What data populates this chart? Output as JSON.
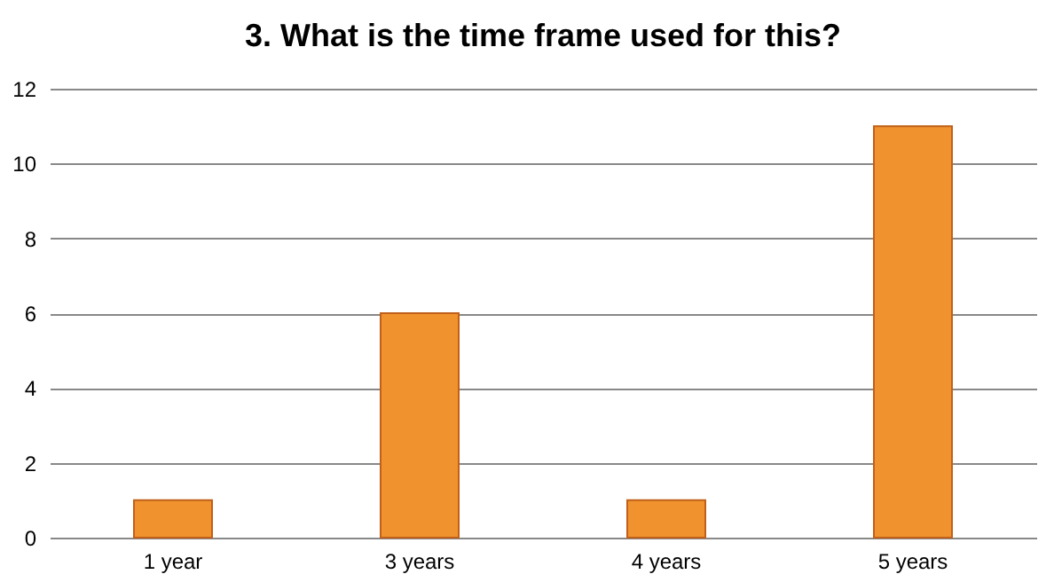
{
  "chart_data": {
    "type": "bar",
    "title": "3. What is the time frame used for this?",
    "categories": [
      "1 year",
      "3 years",
      "4 years",
      "5 years"
    ],
    "values": [
      1,
      6,
      1,
      11
    ],
    "color": "#f0922e",
    "ylim": [
      0,
      12
    ],
    "yticks": [
      0,
      2,
      4,
      6,
      8,
      10,
      12
    ],
    "grid": "y"
  }
}
